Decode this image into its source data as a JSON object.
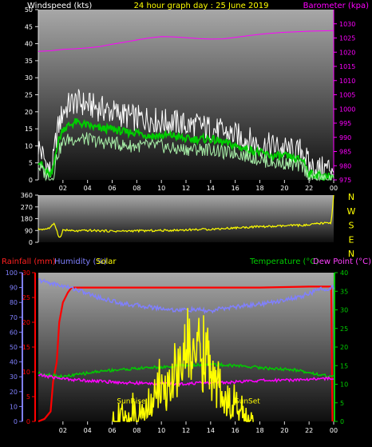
{
  "title": "24 hour graph day : 25 June 2019",
  "colors": {
    "background": "#000000",
    "plot_top": "#a0a0a0",
    "plot_bottom": "#101010",
    "axis": "#e0e0e0",
    "title": "#ffff00",
    "windspeed_label": "#ffffff",
    "gust": "#ffffff",
    "avg_wind": "#00cc00",
    "lull": "#a8f0a8",
    "barometer": "#ff00ff",
    "direction": "#ffff00",
    "rainfall": "#ff0000",
    "humidity": "#8080ff",
    "temperature": "#00cc00",
    "dewpoint": "#ff00ff",
    "solar": "#ffff00"
  },
  "chart_data": [
    {
      "type": "line",
      "panel": "wind-barometer",
      "title": "24 hour graph day : 25 June 2019",
      "ylabel_left": "Windspeed (kts)",
      "ylabel_right": "Barometer (kpa)",
      "x_tick_labels": [
        "02",
        "04",
        "06",
        "08",
        "10",
        "12",
        "14",
        "16",
        "18",
        "20",
        "22",
        "00"
      ],
      "xlim": [
        0,
        24
      ],
      "ylim_left": [
        0,
        50
      ],
      "y_ticks_left": [
        0,
        5,
        10,
        15,
        20,
        25,
        30,
        35,
        40,
        45,
        50
      ],
      "ylim_right": [
        975,
        1035
      ],
      "y_ticks_right": [
        975,
        980,
        985,
        990,
        995,
        1000,
        1005,
        1010,
        1015,
        1020,
        1025,
        1030
      ],
      "grid": false,
      "series": [
        {
          "key": "gust",
          "axis": "left",
          "x": [
            0.0,
            0.5,
            1.0,
            1.2,
            1.5,
            2.0,
            2.5,
            3.0,
            4.0,
            5.0,
            6.0,
            7.0,
            8.0,
            9.0,
            10.0,
            11.0,
            12.0,
            13.0,
            14.0,
            15.0,
            16.0,
            17.0,
            18.0,
            19.0,
            20.0,
            21.0,
            21.5,
            22.0,
            23.0,
            24.0
          ],
          "y": [
            10,
            6,
            2,
            5,
            14,
            20,
            22,
            23,
            22,
            21,
            20,
            19,
            18,
            18,
            17,
            17,
            16,
            16,
            15,
            14,
            13,
            12,
            10,
            10,
            9,
            8,
            9,
            4,
            3,
            4
          ]
        },
        {
          "key": "avg",
          "axis": "left",
          "x": [
            0.0,
            0.5,
            1.0,
            1.2,
            1.5,
            2.0,
            2.5,
            3.0,
            4.0,
            5.0,
            6.0,
            7.0,
            8.0,
            9.0,
            10.0,
            11.0,
            12.0,
            13.0,
            14.0,
            15.0,
            16.0,
            17.0,
            18.0,
            19.0,
            20.0,
            21.0,
            21.5,
            22.0,
            23.0,
            24.0
          ],
          "y": [
            6,
            3,
            1,
            3,
            10,
            15,
            16,
            17,
            16,
            15,
            15,
            14,
            14,
            13,
            13,
            13,
            12,
            12,
            12,
            11,
            10,
            9,
            8,
            7,
            7,
            6,
            6,
            2,
            1,
            1
          ]
        },
        {
          "key": "lull",
          "axis": "left",
          "x": [
            0.0,
            0.5,
            1.0,
            1.2,
            1.5,
            2.0,
            2.5,
            3.0,
            4.0,
            5.0,
            6.0,
            7.0,
            8.0,
            9.0,
            10.0,
            11.0,
            12.0,
            13.0,
            14.0,
            15.0,
            16.0,
            17.0,
            18.0,
            19.0,
            20.0,
            21.0,
            21.5,
            22.0,
            23.0,
            24.0
          ],
          "y": [
            4,
            2,
            0,
            1,
            7,
            11,
            12,
            12,
            12,
            11,
            11,
            10,
            10,
            10,
            10,
            9,
            9,
            9,
            9,
            8,
            8,
            7,
            6,
            5,
            5,
            4,
            4,
            1,
            0,
            0
          ]
        },
        {
          "key": "barometer",
          "axis": "right",
          "x": [
            0,
            1,
            2,
            3,
            4,
            5,
            6,
            7,
            8,
            9,
            10,
            11,
            12,
            13,
            14,
            15,
            16,
            17,
            18,
            19,
            20,
            21,
            22,
            23,
            24
          ],
          "y": [
            1020.3,
            1020.5,
            1021,
            1021.2,
            1021.5,
            1022,
            1022.8,
            1023.5,
            1024.3,
            1025,
            1025.5,
            1025.4,
            1025.1,
            1024.8,
            1024.6,
            1024.7,
            1025.2,
            1025.8,
            1026.3,
            1026.7,
            1027,
            1027.2,
            1027.4,
            1027.5,
            1027.6
          ]
        }
      ]
    },
    {
      "type": "line",
      "panel": "wind-direction",
      "xlim": [
        0,
        24
      ],
      "ylim": [
        0,
        360
      ],
      "y_ticks": [
        0,
        90,
        180,
        270,
        360
      ],
      "compass_labels": [
        "N",
        "W",
        "S",
        "E",
        "N"
      ],
      "series": [
        {
          "key": "direction",
          "x": [
            0.0,
            0.5,
            1.0,
            1.3,
            1.6,
            1.8,
            2.0,
            3.0,
            4.0,
            5.0,
            6.0,
            7.0,
            8.0,
            9.0,
            10.0,
            11.0,
            12.0,
            13.0,
            14.0,
            15.0,
            16.0,
            17.0,
            18.0,
            19.0,
            20.0,
            21.0,
            22.0,
            22.5,
            23.0,
            23.8,
            24.0
          ],
          "y": [
            100,
            100,
            110,
            150,
            60,
            30,
            95,
            85,
            90,
            88,
            85,
            85,
            88,
            88,
            90,
            92,
            95,
            98,
            100,
            105,
            110,
            115,
            120,
            120,
            125,
            130,
            130,
            140,
            145,
            150,
            360
          ]
        }
      ]
    },
    {
      "type": "line",
      "panel": "weather",
      "ylabel_left_1": "Rainfall (mm)",
      "ylabel_left_2": "Humidity (%)",
      "ylabel_left_3": "Solar",
      "ylabel_right_1": "Temperature (°C)",
      "ylabel_right_2": "Dew Point (°C)",
      "xlim": [
        0,
        24
      ],
      "x_tick_labels": [
        "02",
        "04",
        "06",
        "08",
        "10",
        "12",
        "14",
        "16",
        "18",
        "20",
        "22",
        "00"
      ],
      "ylim_rain": [
        0,
        30
      ],
      "y_ticks_rain": [
        0,
        5,
        10,
        15,
        20,
        25,
        30
      ],
      "ylim_humidity": [
        0,
        100
      ],
      "y_ticks_humidity": [
        0,
        10,
        20,
        30,
        40,
        50,
        60,
        70,
        80,
        90,
        100
      ],
      "ylim_temp": [
        0,
        40
      ],
      "y_ticks_temp": [
        0,
        5,
        10,
        15,
        20,
        25,
        30,
        35,
        40
      ],
      "annotations": {
        "sunrise": "SunRise",
        "sunset": "SunSet",
        "sunrise_x": 6.9,
        "sunset_x": 16.6
      },
      "series": [
        {
          "key": "rainfall",
          "axis": "rain",
          "x": [
            0.0,
            0.5,
            1.0,
            1.2,
            1.5,
            1.7,
            2.0,
            2.4,
            2.7,
            3.0,
            10.0,
            14.0,
            18.0,
            22.0,
            23.8,
            23.9
          ],
          "y": [
            0,
            0.5,
            2,
            8,
            12,
            20,
            24,
            26,
            27,
            27,
            27,
            27,
            27,
            27.2,
            27.2,
            0
          ]
        },
        {
          "key": "humidity",
          "axis": "humidity",
          "x": [
            0,
            1,
            2,
            3,
            4,
            5,
            6,
            7,
            8,
            9,
            10,
            11,
            12,
            13,
            14,
            15,
            16,
            17,
            18,
            19,
            20,
            21,
            22,
            23,
            24
          ],
          "y": [
            95,
            93,
            91,
            89,
            86,
            83,
            81,
            79,
            78,
            77,
            76,
            75,
            75,
            75,
            74,
            76,
            77,
            78,
            79,
            80,
            82,
            83,
            86,
            89,
            90
          ]
        },
        {
          "key": "temperature",
          "axis": "temp",
          "x": [
            0,
            1,
            2,
            3,
            4,
            5,
            6,
            7,
            8,
            9,
            10,
            11,
            12,
            13,
            14,
            15,
            16,
            17,
            18,
            19,
            20,
            21,
            22,
            23,
            24
          ],
          "y": [
            13,
            12.5,
            12,
            12.5,
            13,
            13.5,
            13.8,
            14,
            14.2,
            14.5,
            14.6,
            14.8,
            15,
            15.2,
            15.3,
            15.2,
            15,
            14.8,
            14.5,
            14.2,
            14,
            13.8,
            13.2,
            12.5,
            12
          ]
        },
        {
          "key": "dewpoint",
          "axis": "temp",
          "x": [
            0,
            1,
            2,
            3,
            4,
            5,
            6,
            7,
            8,
            9,
            10,
            11,
            12,
            13,
            14,
            15,
            16,
            17,
            18,
            19,
            20,
            21,
            22,
            23,
            24
          ],
          "y": [
            12.5,
            12,
            11.5,
            11.2,
            11,
            10.8,
            10.6,
            10.4,
            10.3,
            10.2,
            10.2,
            10.1,
            10.2,
            10.3,
            10.4,
            10.5,
            10.6,
            10.8,
            11,
            11,
            11.2,
            11.2,
            11.4,
            11.5,
            11.6
          ]
        },
        {
          "key": "solar",
          "axis": "temp",
          "x": [
            6.0,
            7.0,
            8.0,
            9.0,
            9.5,
            10.0,
            10.5,
            11.0,
            11.5,
            12.0,
            12.3,
            12.6,
            13.0,
            13.3,
            13.6,
            14.0,
            14.5,
            15.0,
            15.5,
            16.0,
            16.5,
            17.0,
            17.5
          ],
          "y": [
            0,
            0.5,
            1.5,
            4,
            6,
            10,
            8,
            14,
            12,
            18,
            22,
            16,
            20,
            15,
            18,
            12,
            10,
            8,
            5,
            3,
            1.5,
            0.5,
            0
          ]
        }
      ]
    }
  ]
}
